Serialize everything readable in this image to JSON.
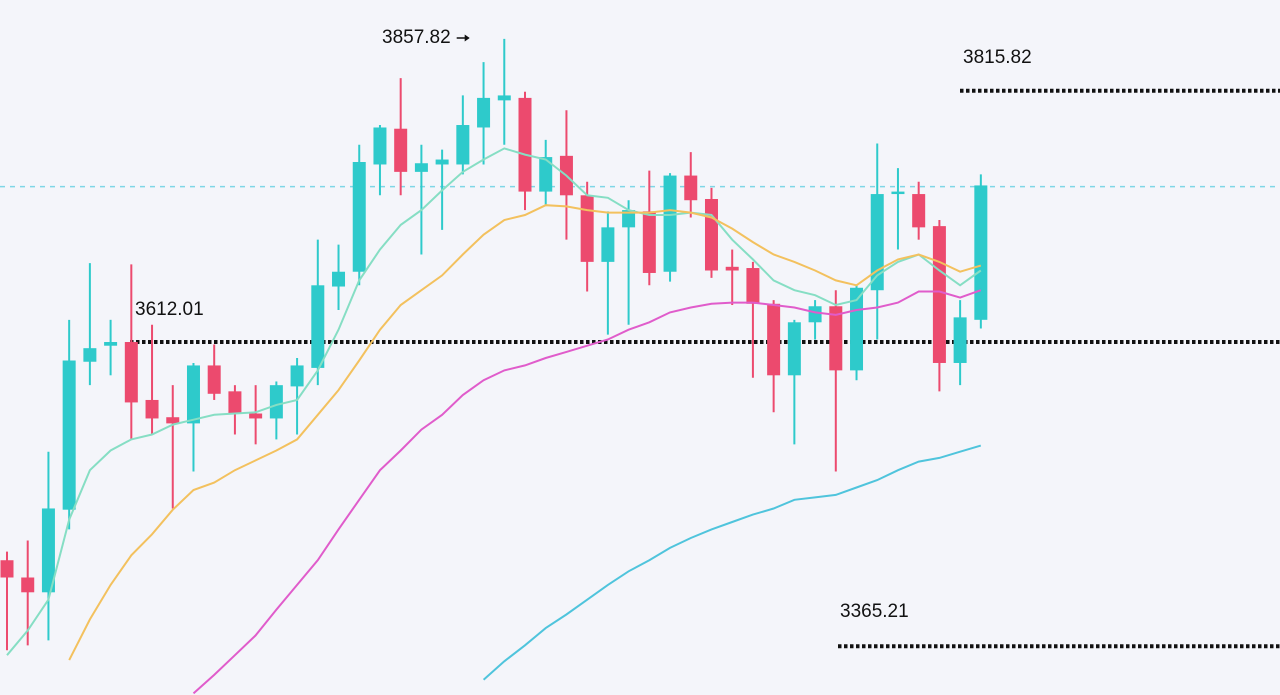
{
  "chart_data": {
    "type": "candlestick",
    "open": [
      3435,
      3421,
      3409,
      3476,
      3596,
      3609,
      3612,
      3565,
      3551,
      3546,
      3593,
      3572,
      3554,
      3550,
      3576,
      3591,
      3657,
      3669,
      3756,
      3785,
      3750,
      3756,
      3756,
      3786,
      3808,
      3810,
      3734,
      3763,
      3731,
      3677,
      3705,
      3718,
      3669,
      3747,
      3728,
      3673,
      3672,
      3643,
      3585,
      3628,
      3641,
      3589,
      3654,
      3732,
      3732,
      3706,
      3595,
      3630
    ],
    "high": [
      3442,
      3451,
      3523,
      3630,
      3676,
      3630,
      3675,
      3626,
      3577,
      3595,
      3610,
      3577,
      3577,
      3580,
      3599,
      3695,
      3691,
      3772,
      3788,
      3826,
      3772,
      3768,
      3812,
      3839,
      3857.82,
      3815,
      3776,
      3800,
      3742,
      3718,
      3727,
      3751,
      3749,
      3766,
      3737,
      3687,
      3677,
      3646,
      3630,
      3646,
      3654,
      3658,
      3773,
      3753,
      3742,
      3711,
      3646,
      3748
    ],
    "low": [
      3362,
      3366,
      3370,
      3460,
      3577,
      3585,
      3533,
      3537,
      3477,
      3507,
      3565,
      3537,
      3529,
      3533,
      3537,
      3577,
      3638,
      3658,
      3731,
      3731,
      3683,
      3703,
      3748,
      3756,
      3772,
      3719,
      3723,
      3695,
      3653,
      3618,
      3626,
      3658,
      3661,
      3713,
      3664,
      3642,
      3583,
      3555,
      3529,
      3614,
      3507,
      3581,
      3614,
      3687,
      3695,
      3572,
      3577,
      3623
    ],
    "close": [
      3421,
      3409,
      3477,
      3597,
      3607,
      3612,
      3563,
      3550,
      3546,
      3593,
      3570,
      3554,
      3550,
      3577,
      3593,
      3658,
      3669,
      3758,
      3786,
      3750,
      3757,
      3760,
      3788,
      3810,
      3812,
      3734,
      3762,
      3731,
      3677,
      3705,
      3719,
      3668,
      3747,
      3727,
      3670,
      3670,
      3643,
      3585,
      3628,
      3641,
      3589,
      3656,
      3732,
      3734,
      3705,
      3595,
      3632,
      3739
    ],
    "up_color": "#2ecacb",
    "down_color": "#ec4a6e",
    "series": [
      {
        "color": "#86dec4",
        "values": [
          3358,
          3378,
          3403,
          3468,
          3508,
          3524,
          3533,
          3537,
          3545,
          3549,
          3553,
          3554,
          3555,
          3561,
          3565,
          3589,
          3622,
          3662,
          3687,
          3707,
          3719,
          3735,
          3750,
          3760,
          3769,
          3764,
          3760,
          3747,
          3731,
          3729,
          3719,
          3715,
          3715,
          3717,
          3715,
          3695,
          3679,
          3662,
          3654,
          3650,
          3642,
          3646,
          3666,
          3677,
          3683,
          3670,
          3658,
          3670
        ]
      },
      {
        "color": "#f3c15e",
        "values": [
          null,
          null,
          null,
          3354,
          3387,
          3415,
          3439,
          3456,
          3476,
          3492,
          3498,
          3508,
          3516,
          3524,
          3533,
          3553,
          3573,
          3597,
          3622,
          3642,
          3654,
          3666,
          3683,
          3699,
          3711,
          3715,
          3723,
          3722,
          3719,
          3717,
          3717,
          3717,
          3719,
          3717,
          3713,
          3704,
          3693,
          3683,
          3677,
          3670,
          3662,
          3658,
          3670,
          3679,
          3683,
          3677,
          3669,
          3674
        ]
      },
      {
        "color": "#e05ccb",
        "values": [
          null,
          null,
          null,
          null,
          null,
          null,
          null,
          null,
          null,
          3327,
          3342,
          3358,
          3374,
          3395,
          3415,
          3435,
          3460,
          3484,
          3508,
          3524,
          3541,
          3553,
          3569,
          3581,
          3589,
          3593,
          3599,
          3604,
          3609,
          3614,
          3622,
          3628,
          3636,
          3640,
          3643,
          3644,
          3644,
          3642,
          3640,
          3636,
          3634,
          3638,
          3640,
          3644,
          3653,
          3653,
          3648,
          3654
        ]
      },
      {
        "color": "#4fc4dc",
        "values": [
          null,
          null,
          null,
          null,
          null,
          null,
          null,
          null,
          null,
          null,
          null,
          null,
          null,
          null,
          null,
          null,
          null,
          null,
          null,
          null,
          null,
          null,
          null,
          3338,
          3353,
          3366,
          3380,
          3391,
          3403,
          3415,
          3426,
          3435,
          3445,
          3453,
          3460,
          3466,
          3472,
          3477,
          3484,
          3486,
          3488,
          3494,
          3500,
          3508,
          3515,
          3518,
          3523,
          3528
        ]
      }
    ],
    "levels": [
      3815.82,
      3612.01,
      3365.21
    ],
    "last_price": 3738,
    "ylim": [
      3325.7,
      3889.4
    ]
  }
}
